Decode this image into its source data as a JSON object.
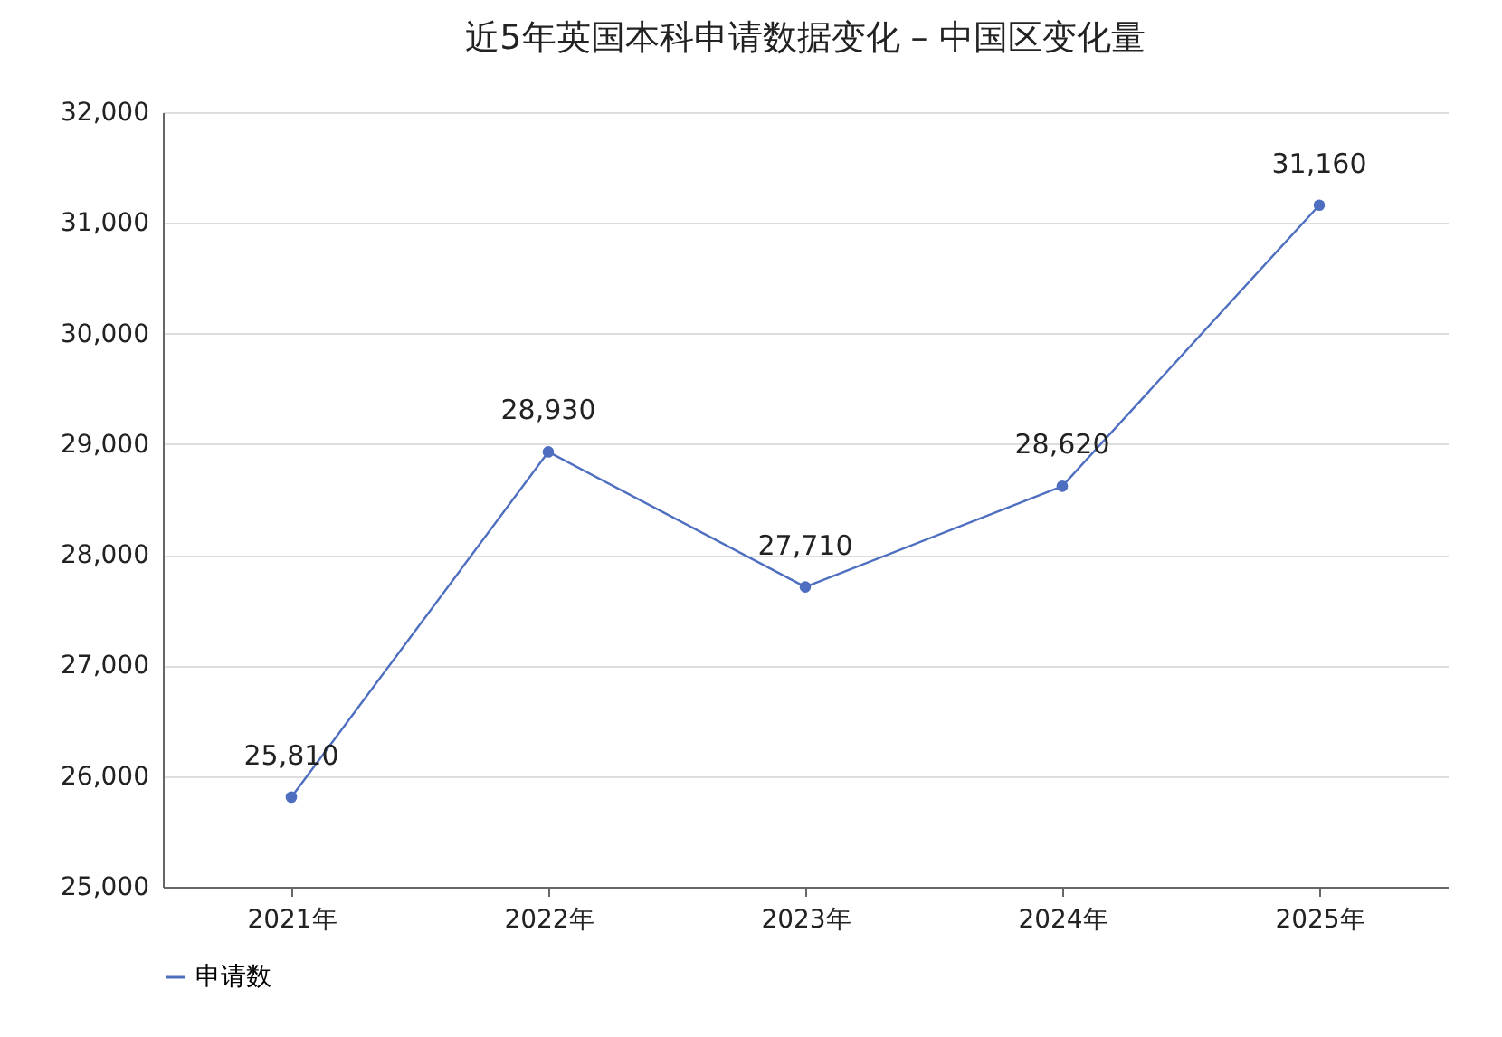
{
  "chart_data": {
    "type": "line",
    "title": "近5年英国本科申请数据变化 – 中国区变化量",
    "categories": [
      "2021年",
      "2022年",
      "2023年",
      "2024年",
      "2025年"
    ],
    "series": [
      {
        "name": "申请数",
        "color": "#4e6fc0",
        "values": [
          25810,
          28930,
          27710,
          28620,
          31160
        ],
        "value_labels": [
          "25,810",
          "28,930",
          "27,710",
          "28,620",
          "31,160"
        ]
      }
    ],
    "ylim": [
      25000,
      32000
    ],
    "yticks": [
      {
        "value": 25000,
        "label": "25,000"
      },
      {
        "value": 26000,
        "label": "26,000"
      },
      {
        "value": 27000,
        "label": "27,000"
      },
      {
        "value": 28000,
        "label": "28,000"
      },
      {
        "value": 29000,
        "label": "29,000"
      },
      {
        "value": 30000,
        "label": "30,000"
      },
      {
        "value": 31000,
        "label": "31,000"
      },
      {
        "value": 32000,
        "label": "32,000"
      }
    ],
    "grid": "y",
    "legend": "bottom",
    "marker": "circle",
    "line_style": "solid"
  }
}
